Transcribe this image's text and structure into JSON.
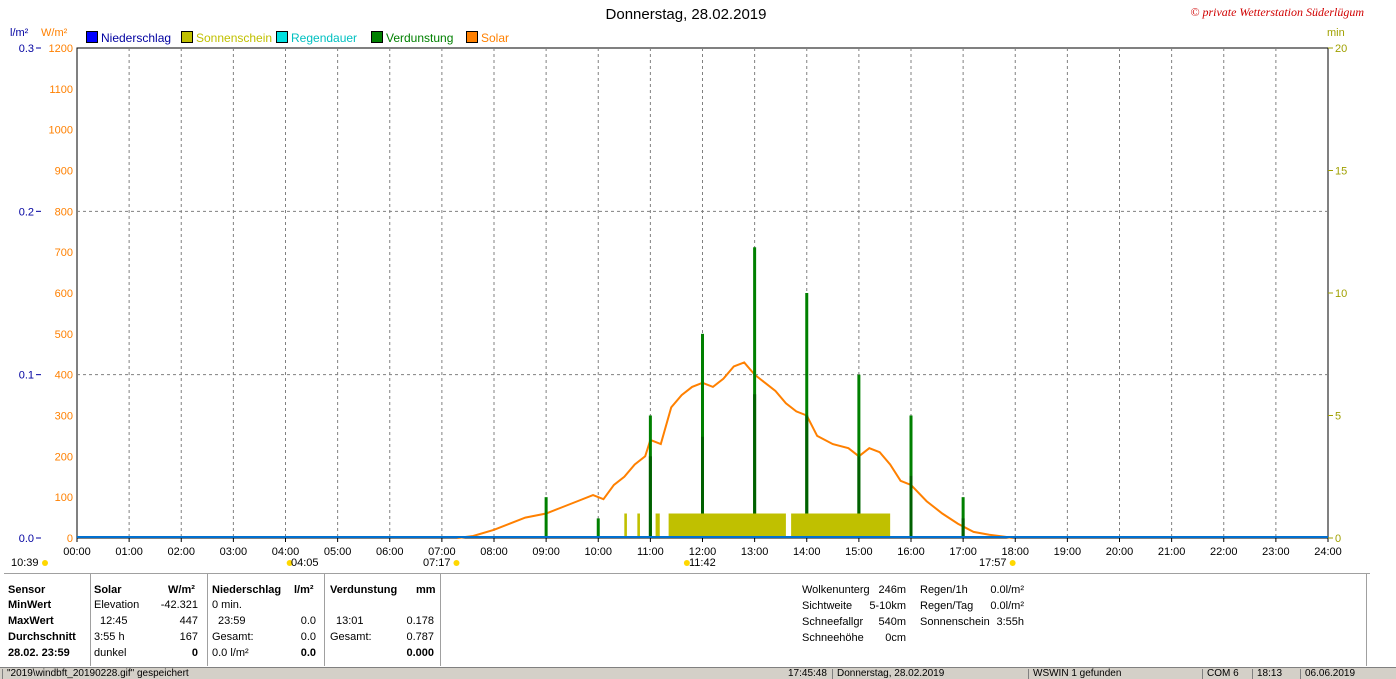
{
  "title": "Donnerstag, 28.02.2019",
  "watermark": "© private Wetterstation Süderlügum",
  "axes": {
    "left1_unit": "l/m²",
    "left2_unit": "W/m²",
    "right_unit": "min"
  },
  "legend": [
    {
      "label": "Niederschlag",
      "color": "#0000ff",
      "text_color": "#0000a0"
    },
    {
      "label": "Sonnenschein",
      "color": "#c0c000",
      "text_color": "#c0c000"
    },
    {
      "label": "Regendauer",
      "color": "#00e0e0",
      "text_color": "#00c0c0"
    },
    {
      "label": "Verdunstung",
      "color": "#008000",
      "text_color": "#008000"
    },
    {
      "label": "Solar",
      "color": "#ff8000",
      "text_color": "#ff8000"
    }
  ],
  "markers": {
    "sunrise_left": "10:39",
    "moon1": "04:05",
    "sunrise": "07:17",
    "noon": "11:42",
    "sunset": "17:57"
  },
  "chart_data": {
    "type": "line",
    "x_unit": "hour",
    "xlim": [
      0,
      24
    ],
    "x_ticks": [
      "00:00",
      "01:00",
      "02:00",
      "03:00",
      "04:00",
      "05:00",
      "06:00",
      "07:00",
      "08:00",
      "09:00",
      "10:00",
      "11:00",
      "12:00",
      "13:00",
      "14:00",
      "15:00",
      "16:00",
      "17:00",
      "18:00",
      "19:00",
      "20:00",
      "21:00",
      "22:00",
      "23:00",
      "24:00"
    ],
    "y_left_precip": {
      "ylim": [
        0,
        0.3
      ],
      "ticks": [
        "0.0",
        "0.1",
        "0.2",
        "0.3"
      ]
    },
    "y_left_solar": {
      "ylim": [
        0,
        1200
      ],
      "ticks": [
        "0",
        "100",
        "200",
        "300",
        "400",
        "500",
        "600",
        "700",
        "800",
        "900",
        "1000",
        "1100",
        "1200"
      ]
    },
    "y_right_min": {
      "ylim": [
        0,
        20
      ],
      "ticks": [
        "0",
        "5",
        "10",
        "15",
        "20"
      ]
    },
    "series": [
      {
        "name": "Solar",
        "axis": "solar",
        "color": "#ff8000",
        "x": [
          7.3,
          7.6,
          8.0,
          8.3,
          8.6,
          9.0,
          9.3,
          9.6,
          9.9,
          10.1,
          10.3,
          10.5,
          10.7,
          10.9,
          11.0,
          11.2,
          11.4,
          11.6,
          11.8,
          12.0,
          12.2,
          12.4,
          12.6,
          12.8,
          13.0,
          13.2,
          13.4,
          13.6,
          13.8,
          14.0,
          14.2,
          14.5,
          14.8,
          15.0,
          15.2,
          15.4,
          15.6,
          15.8,
          16.0,
          16.3,
          16.6,
          16.9,
          17.2,
          17.5,
          17.8,
          17.95
        ],
        "y": [
          0,
          5,
          20,
          35,
          50,
          60,
          75,
          90,
          105,
          95,
          130,
          150,
          180,
          200,
          240,
          230,
          320,
          350,
          370,
          380,
          370,
          390,
          420,
          430,
          400,
          380,
          360,
          330,
          310,
          300,
          250,
          230,
          220,
          200,
          220,
          210,
          180,
          140,
          130,
          90,
          60,
          35,
          15,
          8,
          3,
          0
        ]
      },
      {
        "name": "Verdunstung",
        "axis": "precip",
        "type": "bar",
        "color": "#008000",
        "x": [
          9.0,
          10.0,
          11.0,
          12.0,
          13.0,
          14.0,
          15.0,
          16.0,
          17.0
        ],
        "y": [
          0.025,
          0.012,
          0.075,
          0.125,
          0.178,
          0.15,
          0.1,
          0.075,
          0.025
        ],
        "y2": [
          0,
          0,
          0.05,
          0.062,
          0.088,
          0.075,
          0.05,
          0.038,
          0.012
        ]
      },
      {
        "name": "Sonnenschein",
        "axis": "min",
        "type": "block",
        "color": "#c0c000",
        "blocks": [
          [
            10.5,
            10.55
          ],
          [
            10.75,
            10.8
          ],
          [
            11.1,
            11.18
          ],
          [
            11.35,
            13.6
          ],
          [
            13.7,
            15.6
          ]
        ],
        "height": 1
      }
    ]
  },
  "stats": {
    "headers": {
      "sensor": "Sensor",
      "solar": "Solar",
      "solar_unit": "W/m²",
      "niederschlag": "Niederschlag",
      "nied_unit": "l/m²",
      "verdunstung": "Verdunstung",
      "verd_unit": "mm"
    },
    "rows": [
      {
        "label": "MinWert",
        "solar_a": "Elevation",
        "solar_b": "-42.321",
        "nied_a": "0 min.",
        "nied_b": "",
        "verd_a": "",
        "verd_b": ""
      },
      {
        "label": "MaxWert",
        "solar_a": "12:45",
        "solar_b": "447",
        "nied_a": "23:59",
        "nied_b": "0.0",
        "verd_a": "13:01",
        "verd_b": "0.178"
      },
      {
        "label": "Durchschnitt",
        "solar_a": "3:55 h",
        "solar_b": "167",
        "nied_a": "Gesamt:",
        "nied_b": "0.0",
        "verd_a": "Gesamt:",
        "verd_b": "0.787"
      },
      {
        "label": "28.02. 23:59",
        "solar_a": "dunkel",
        "solar_b": "0",
        "nied_a": "0.0 l/m²",
        "nied_b": "0.0",
        "verd_a": "",
        "verd_b": "0.000"
      }
    ],
    "weather": [
      {
        "label": "Wolkenunterg",
        "value": "246m"
      },
      {
        "label": "Sichtweite",
        "value": "5-10km"
      },
      {
        "label": "Schneefallgr",
        "value": "540m"
      },
      {
        "label": "Schneehöhe",
        "value": "0cm"
      }
    ],
    "rain": [
      {
        "label": "Regen/1h",
        "value": "0.0l/m²"
      },
      {
        "label": "Regen/Tag",
        "value": "0.0l/m²"
      },
      {
        "label": "Sonnenschein",
        "value": "3:55h"
      }
    ]
  },
  "statusbar": {
    "file": "\"2019\\windbft_20190228.gif\" gespeichert",
    "time": "17:45:48",
    "date": "Donnerstag, 28.02.2019",
    "found": "WSWIN 1 gefunden",
    "port": "COM 6",
    "clock": "18:13",
    "today": "06.06.2019"
  }
}
